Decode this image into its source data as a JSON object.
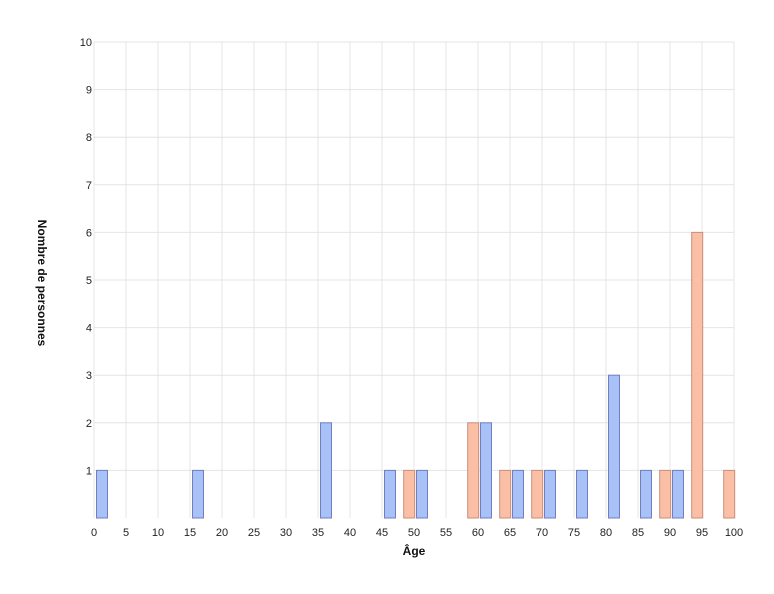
{
  "chart_data": {
    "type": "bar",
    "xlabel": "Âge",
    "ylabel": "Nombre de personnes",
    "xlim": [
      0,
      100
    ],
    "ylim": [
      0,
      10
    ],
    "grid": true,
    "x_ticks": [
      "0",
      "5",
      "10",
      "15",
      "20",
      "25",
      "30",
      "35",
      "40",
      "45",
      "50",
      "55",
      "60",
      "65",
      "70",
      "75",
      "80",
      "85",
      "90",
      "95",
      "100"
    ],
    "y_ticks": [
      "1",
      "2",
      "3",
      "4",
      "5",
      "6",
      "7",
      "8",
      "9",
      "10"
    ],
    "series": [
      {
        "color": "#a8c1f7",
        "border": "#6f7fc2",
        "points": [
          {
            "x": 0,
            "y": 1
          },
          {
            "x": 15,
            "y": 1
          },
          {
            "x": 35,
            "y": 2
          },
          {
            "x": 45,
            "y": 1
          },
          {
            "x": 50,
            "y": 1
          },
          {
            "x": 60,
            "y": 2
          },
          {
            "x": 65,
            "y": 1
          },
          {
            "x": 70,
            "y": 1
          },
          {
            "x": 75,
            "y": 1
          },
          {
            "x": 80,
            "y": 3
          },
          {
            "x": 85,
            "y": 1
          },
          {
            "x": 90,
            "y": 1
          }
        ]
      },
      {
        "color": "#fbbfa6",
        "border": "#c98e7c",
        "points": [
          {
            "x": 48,
            "y": 1
          },
          {
            "x": 58,
            "y": 2
          },
          {
            "x": 63,
            "y": 1
          },
          {
            "x": 68,
            "y": 1
          },
          {
            "x": 88,
            "y": 1
          },
          {
            "x": 93,
            "y": 6
          },
          {
            "x": 98,
            "y": 1
          }
        ]
      }
    ]
  }
}
